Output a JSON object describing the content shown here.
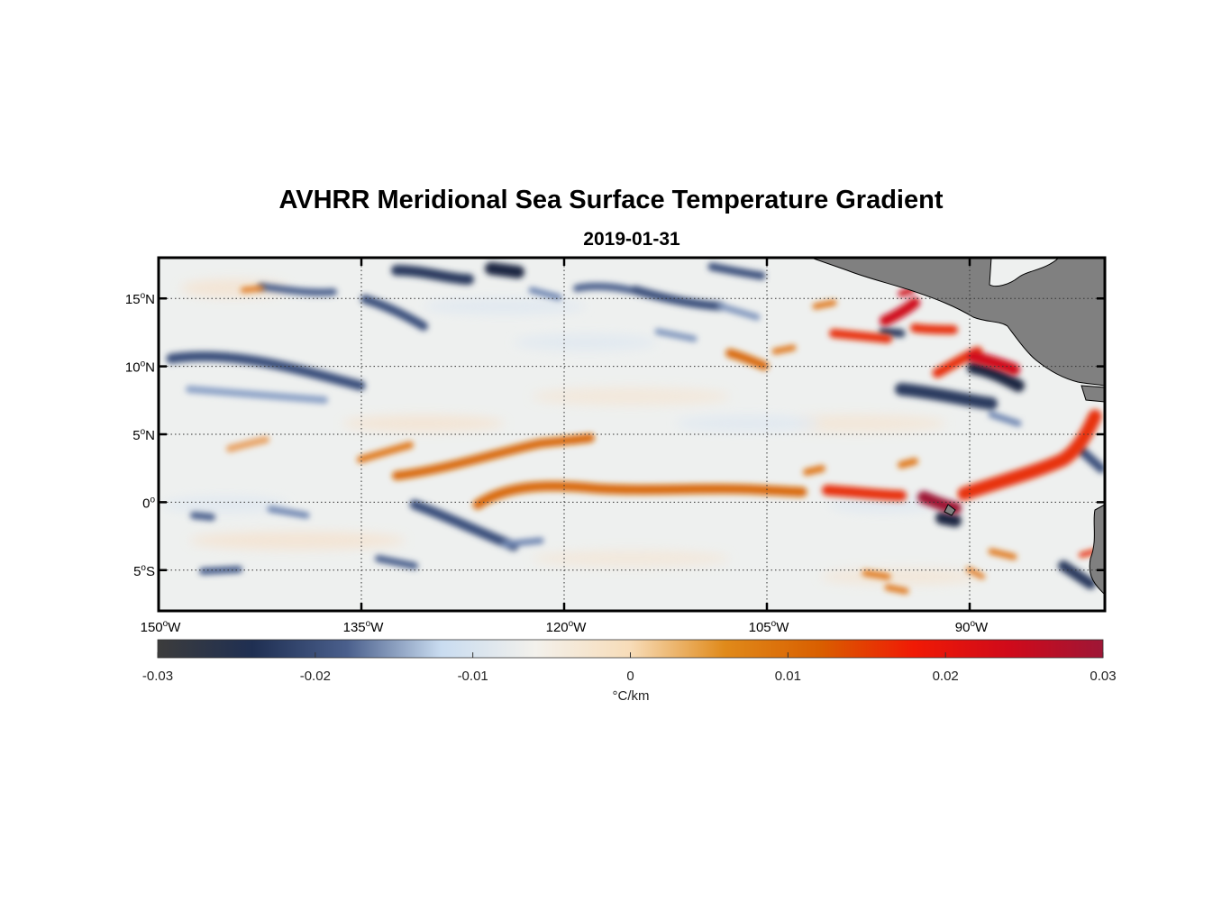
{
  "title": "AVHRR Meridional Sea Surface Temperature Gradient",
  "subtitle": "2019-01-31",
  "map": {
    "lon_range": [
      -150,
      -80
    ],
    "lat_range": [
      -8,
      18
    ],
    "lat_ticks": [
      {
        "value": 15,
        "label": "15",
        "hemi": "N"
      },
      {
        "value": 10,
        "label": "10",
        "hemi": "N"
      },
      {
        "value": 5,
        "label": "5",
        "hemi": "N"
      },
      {
        "value": 0,
        "label": "0",
        "hemi": ""
      },
      {
        "value": -5,
        "label": "5",
        "hemi": "S"
      }
    ],
    "lon_ticks": [
      {
        "value": -150,
        "label": "150",
        "hemi": "W"
      },
      {
        "value": -135,
        "label": "135",
        "hemi": "W"
      },
      {
        "value": -120,
        "label": "120",
        "hemi": "W"
      },
      {
        "value": -105,
        "label": "105",
        "hemi": "W"
      },
      {
        "value": -90,
        "label": "90",
        "hemi": "W"
      }
    ],
    "land_color": "#808080",
    "grid": true
  },
  "colorbar": {
    "min": -0.03,
    "max": 0.03,
    "ticks": [
      "-0.03",
      "-0.02",
      "-0.01",
      "0",
      "0.01",
      "0.02",
      "0.03"
    ],
    "unit": "°C/km",
    "colors": [
      "#3c3c3c",
      "#1f2f52",
      "#4a5f8c",
      "#c9dcf0",
      "#f3f1ec",
      "#f7dcb8",
      "#e08a1a",
      "#d95f00",
      "#f01a05",
      "#d00a1a",
      "#9e1636"
    ]
  }
}
